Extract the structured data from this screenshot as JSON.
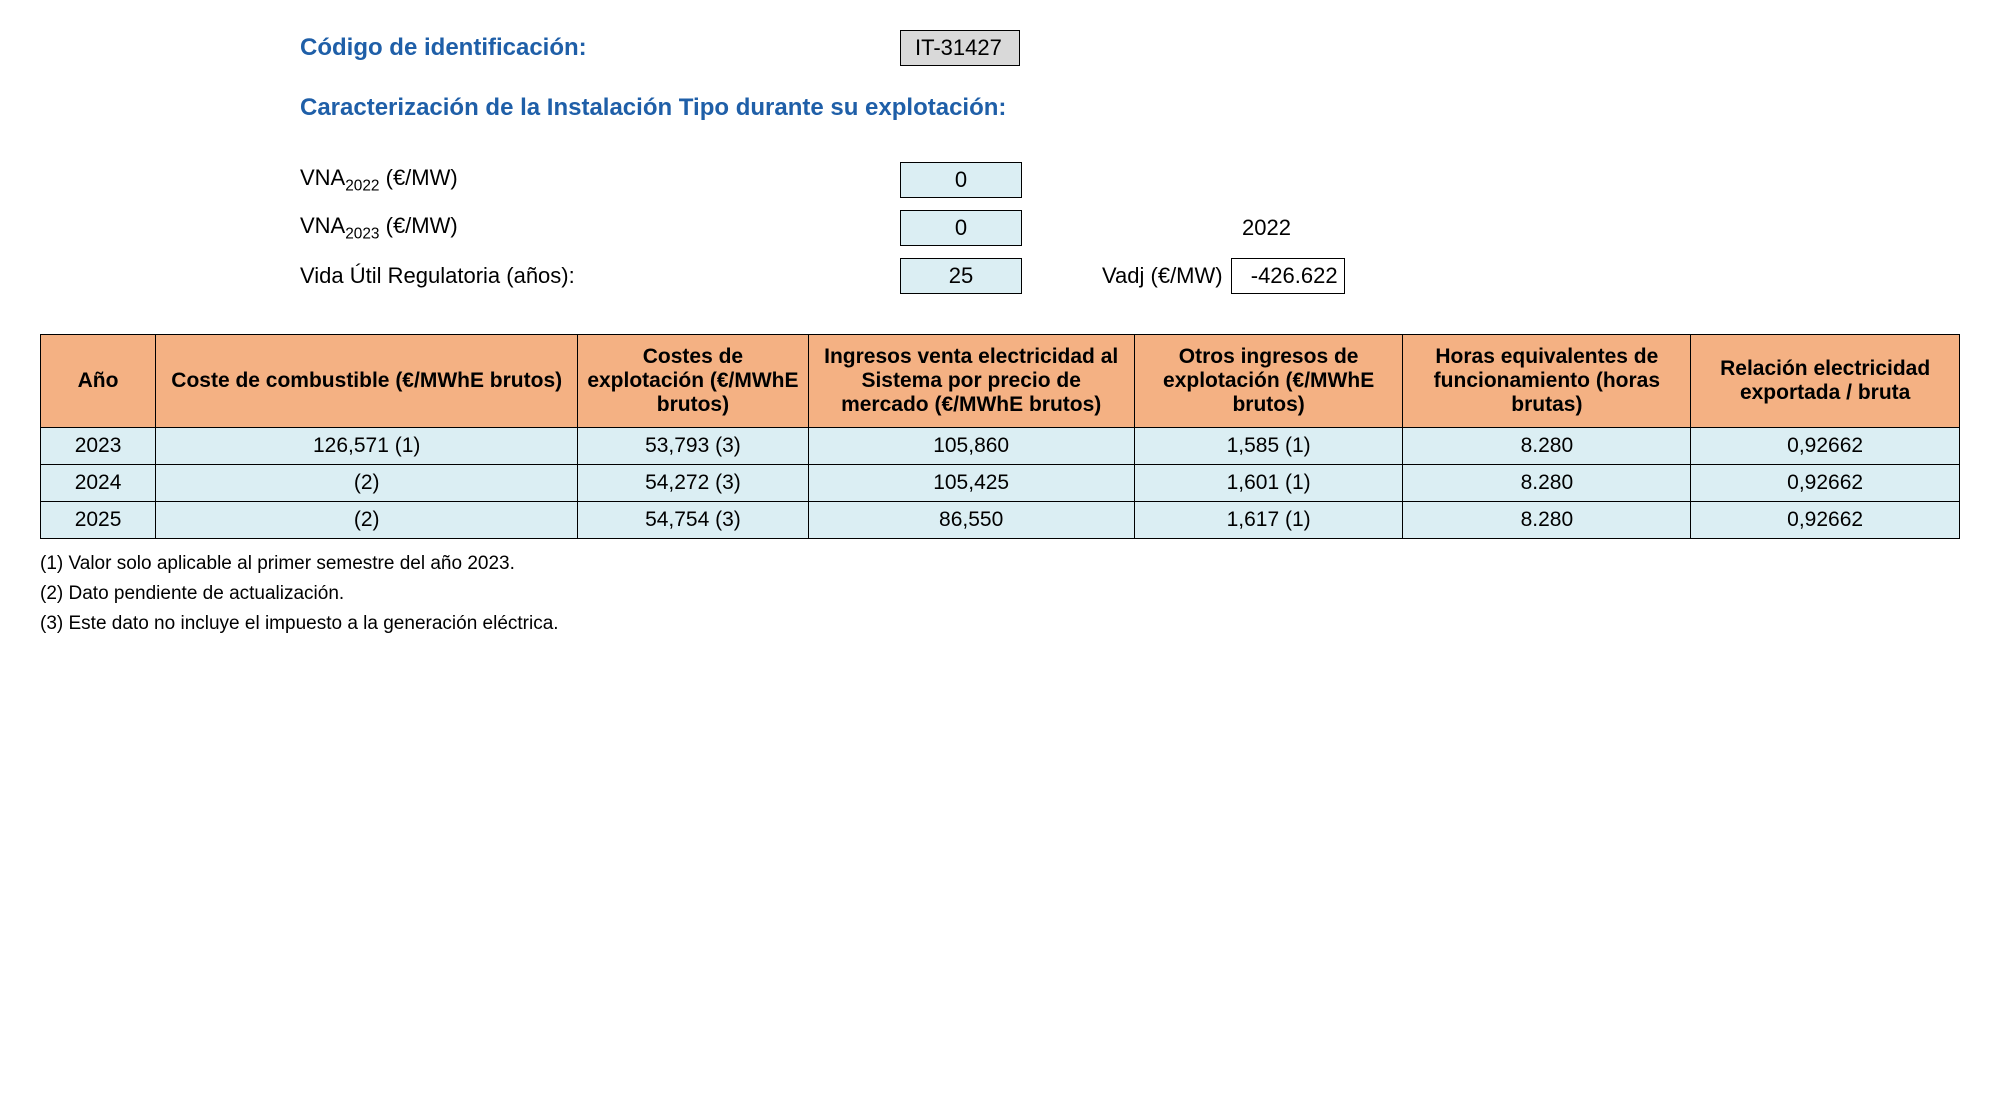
{
  "header": {
    "id_label": "Código de identificación:",
    "id_value": "IT-31427",
    "section_title": "Caracterización de la Instalación Tipo durante su explotación:"
  },
  "params": {
    "vna2022_label_prefix": "VNA",
    "vna2022_sub": "2022",
    "vna2022_unit": " (€/MW)",
    "vna2022_value": "0",
    "vna2023_label_prefix": "VNA",
    "vna2023_sub": "2023",
    "vna2023_unit": " (€/MW)",
    "vna2023_value": "0",
    "ref_year": "2022",
    "vida_label": "Vida Útil Regulatoria (años):",
    "vida_value": "25",
    "vadj_label": "Vadj (€/MW)",
    "vadj_value": "-426.622"
  },
  "table": {
    "columns": [
      "Año",
      "Coste de combustible (€/MWhE brutos)",
      "Costes de explotación (€/MWhE brutos)",
      "Ingresos venta electricidad al Sistema por precio de mercado (€/MWhE brutos)",
      "Otros ingresos de explotación (€/MWhE brutos)",
      "Horas equivalentes de funcionamiento (horas brutas)",
      "Relación electricidad exportada / bruta"
    ],
    "col_widths": [
      "6%",
      "22%",
      "12%",
      "17%",
      "14%",
      "15%",
      "14%"
    ],
    "rows": [
      [
        "2023",
        "126,571 (1)",
        "53,793 (3)",
        "105,860",
        "1,585 (1)",
        "8.280",
        "0,92662"
      ],
      [
        "2024",
        "(2)",
        "54,272 (3)",
        "105,425",
        "1,601 (1)",
        "8.280",
        "0,92662"
      ],
      [
        "2025",
        "(2)",
        "54,754 (3)",
        "86,550",
        "1,617 (1)",
        "8.280",
        "0,92662"
      ]
    ],
    "header_bg": "#f4b183",
    "cell_bg": "#dbeef3",
    "border_color": "#000000"
  },
  "notes": {
    "n1": "(1) Valor solo aplicable al primer semestre del año 2023.",
    "n2": "(2) Dato pendiente de actualización.",
    "n3": "(3) Este dato no incluye el impuesto a la generación eléctrica."
  }
}
